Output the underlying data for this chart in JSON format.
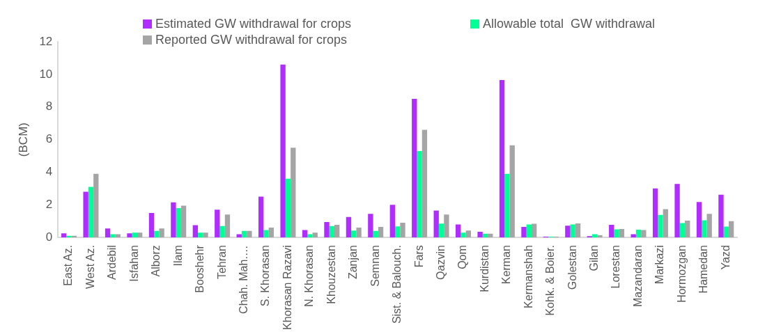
{
  "chart_data": {
    "type": "bar",
    "ylabel": "(BCM)",
    "categories": [
      "East Az.",
      "West Az.",
      "Ardebil",
      "Isfahan",
      "Alborz",
      "Ilam",
      "Booshehr",
      "Tehran",
      "Chah. Mah.…",
      "S. Khorasan",
      "Khorasan Razavi",
      "N. Khorasan",
      "Khouzestan",
      "Zanjan",
      "Semnan",
      "Sist. & Balouch.",
      "Fars",
      "Qazvin",
      "Qom",
      "Kurdistan",
      "Kerman",
      "Kermanshah",
      "Kohk. & Boier.",
      "Golestan",
      "Gilan",
      "Lorestan",
      "Mazandaran",
      "Markazi",
      "Hormozgan",
      "Hamedan",
      "Yazd"
    ],
    "series": [
      {
        "name": "Estimated GW withdrawal for crops",
        "color": "#b02cff",
        "values": [
          0.25,
          2.8,
          0.55,
          0.25,
          1.5,
          2.15,
          0.75,
          1.7,
          0.2,
          2.5,
          10.6,
          0.45,
          0.95,
          1.25,
          1.45,
          2.0,
          8.5,
          1.65,
          0.8,
          0.35,
          9.65,
          0.65,
          0.05,
          0.72,
          0.08,
          0.78,
          0.2,
          3.0,
          3.28,
          2.17,
          2.62
        ]
      },
      {
        "name": "Allowable total  GW withdrawal",
        "color": "#00ff96",
        "values": [
          0.1,
          3.1,
          0.2,
          0.3,
          0.4,
          1.8,
          0.3,
          0.7,
          0.4,
          0.45,
          3.6,
          0.2,
          0.7,
          0.42,
          0.4,
          0.68,
          5.3,
          0.85,
          0.3,
          0.23,
          3.9,
          0.8,
          0.05,
          0.8,
          0.2,
          0.5,
          0.48,
          1.38,
          0.88,
          1.05,
          0.67
        ]
      },
      {
        "name": "Reported GW withdrawal for crops",
        "color": "#a5a5a5",
        "values": [
          0.1,
          3.9,
          0.2,
          0.3,
          0.55,
          1.95,
          0.3,
          1.4,
          0.4,
          0.6,
          5.5,
          0.3,
          0.78,
          0.6,
          0.65,
          0.9,
          6.6,
          1.4,
          0.42,
          0.23,
          5.65,
          0.84,
          0.05,
          0.86,
          0.14,
          0.52,
          0.45,
          1.74,
          1.03,
          1.45,
          1.0
        ]
      }
    ],
    "ylim": [
      0,
      12
    ],
    "yticks": [
      0,
      2,
      4,
      6,
      8,
      10,
      12
    ],
    "grid": false,
    "legend": "top"
  }
}
